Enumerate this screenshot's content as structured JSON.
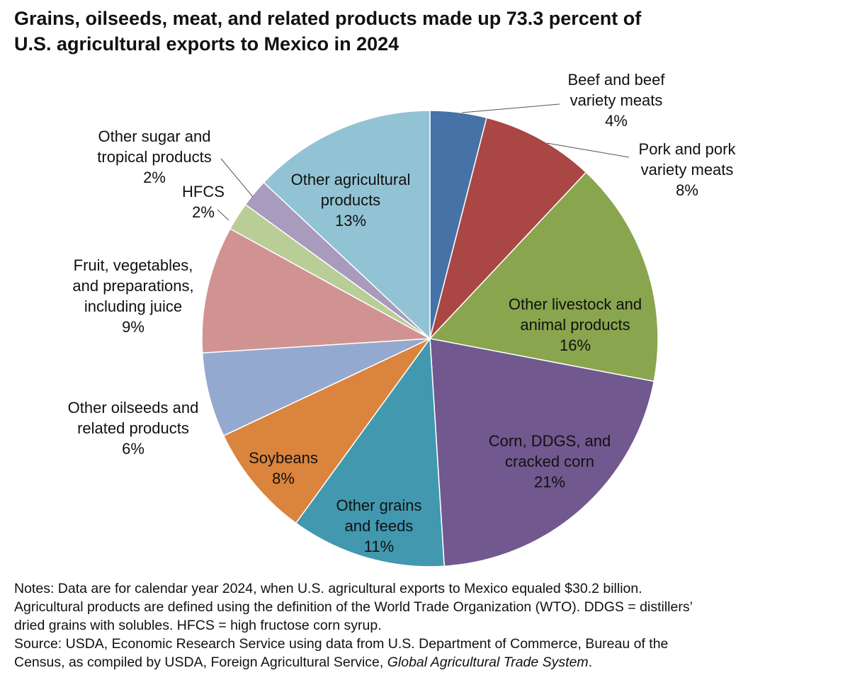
{
  "header": {
    "title_lines": [
      "Grains, oilseeds, meat, and related products made up 73.3 percent of",
      "U.S. agricultural exports to Mexico in 2024"
    ]
  },
  "chart_data": {
    "type": "pie",
    "title": "Grains, oilseeds, meat, and related products made up 73.3 percent of U.S. agricultural exports to Mexico in 2024",
    "start_angle_deg": 0,
    "direction": "clockwise",
    "slices": [
      {
        "label_lines": [
          "Beef and beef",
          "variety meats"
        ],
        "value": 4,
        "percent_label": "4%",
        "color": "#4572a7",
        "label_position": "outside"
      },
      {
        "label_lines": [
          "Pork and pork",
          "variety meats"
        ],
        "value": 8,
        "percent_label": "8%",
        "color": "#aa4643",
        "label_position": "outside"
      },
      {
        "label_lines": [
          "Other livestock and",
          "animal products"
        ],
        "value": 16,
        "percent_label": "16%",
        "color": "#89a54e",
        "label_position": "inside"
      },
      {
        "label_lines": [
          "Corn, DDGS, and",
          "cracked corn"
        ],
        "value": 21,
        "percent_label": "21%",
        "color": "#71588f",
        "label_position": "inside"
      },
      {
        "label_lines": [
          "Other grains",
          "and feeds"
        ],
        "value": 11,
        "percent_label": "11%",
        "color": "#4198af",
        "label_position": "inside"
      },
      {
        "label_lines": [
          "Soybeans"
        ],
        "value": 8,
        "percent_label": "8%",
        "color": "#db843d",
        "label_position": "inside"
      },
      {
        "label_lines": [
          "Other oilseeds and",
          "related products"
        ],
        "value": 6,
        "percent_label": "6%",
        "color": "#93a9cf",
        "label_position": "outside"
      },
      {
        "label_lines": [
          "Fruit, vegetables,",
          "and preparations,",
          "including juice"
        ],
        "value": 9,
        "percent_label": "9%",
        "color": "#d19392",
        "label_position": "outside"
      },
      {
        "label_lines": [
          "HFCS"
        ],
        "value": 2,
        "percent_label": "2%",
        "color": "#b9cd96",
        "label_position": "outside"
      },
      {
        "label_lines": [
          "Other sugar and",
          "tropical products"
        ],
        "value": 2,
        "percent_label": "2%",
        "color": "#a99bbd",
        "label_position": "outside"
      },
      {
        "label_lines": [
          "Other agricultural",
          "products"
        ],
        "value": 13,
        "percent_label": "13%",
        "color": "#92c3d4",
        "label_position": "inside"
      }
    ]
  },
  "notes": {
    "line1": "Notes: Data are for calendar year 2024, when U.S. agricultural exports to Mexico equaled $30.2 billion.",
    "line2": "Agricultural products are defined using the definition of the World Trade Organization (WTO). DDGS = distillers’",
    "line3": "dried grains with solubles. HFCS = high fructose corn syrup.",
    "line4": "Source: USDA, Economic Research Service using data from U.S. Department of Commerce, Bureau of the",
    "line5_prefix": "Census, as compiled by USDA, Foreign Agricultural Service, ",
    "line5_italic": "Global Agricultural Trade System",
    "line5_suffix": "."
  }
}
